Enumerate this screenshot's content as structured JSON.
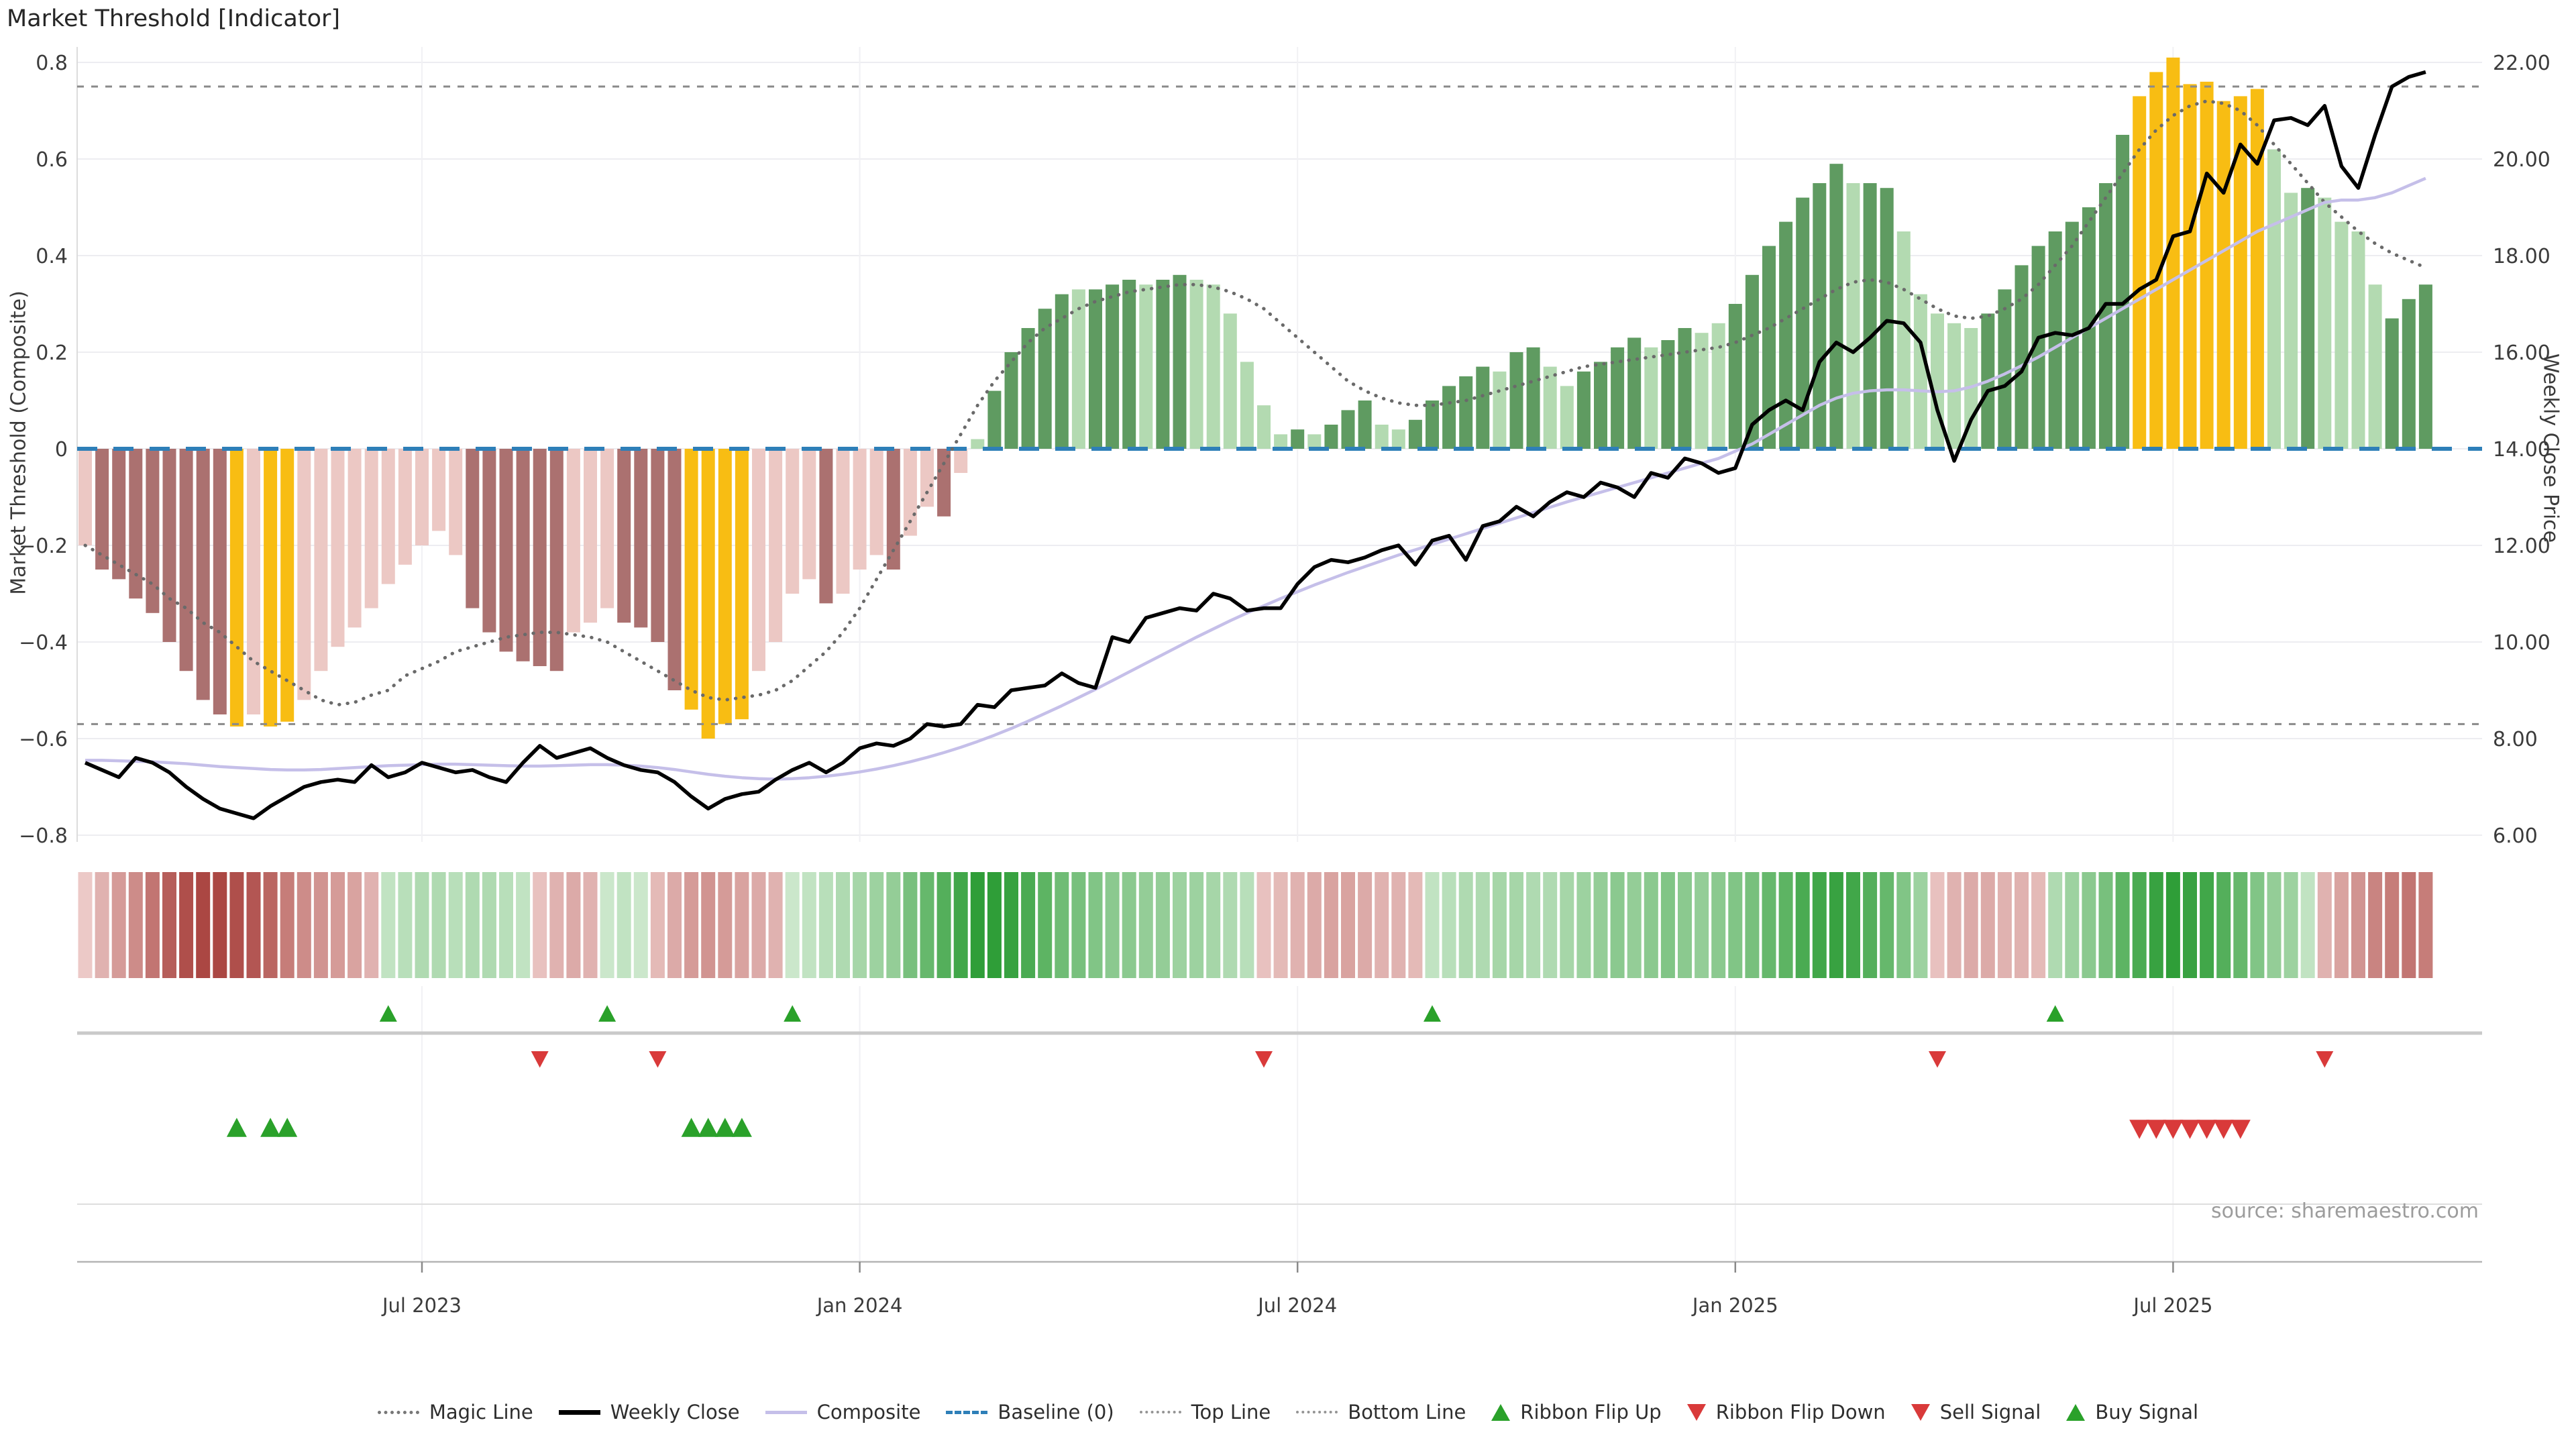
{
  "title": "Market Threshold [Indicator]",
  "source": "source: sharemaestro.com",
  "axes": {
    "left_title": "Market Threshold (Composite)",
    "right_title": "Weekly Close Price",
    "left_ticks": [
      "0.8",
      "0.6",
      "0.4",
      "0.2",
      "0",
      "−0.2",
      "−0.4",
      "−0.6",
      "−0.8"
    ],
    "left_tick_values": [
      0.8,
      0.6,
      0.4,
      0.2,
      0,
      -0.2,
      -0.4,
      -0.6,
      -0.8
    ],
    "right_ticks": [
      "22.00",
      "20.00",
      "18.00",
      "16.00",
      "14.00",
      "12.00",
      "10.00",
      "8.00",
      "6.00"
    ],
    "right_tick_values": [
      22,
      20,
      18,
      16,
      14,
      12,
      10,
      8,
      6
    ],
    "x_ticks": [
      {
        "label": "Jul 2023",
        "week": 20
      },
      {
        "label": "Jan 2024",
        "week": 46
      },
      {
        "label": "Jul 2024",
        "week": 72
      },
      {
        "label": "Jan 2025",
        "week": 98
      },
      {
        "label": "Jul 2025",
        "week": 124
      }
    ]
  },
  "legend": [
    {
      "label": "Magic Line",
      "type": "dotted-gray",
      "kind": "line"
    },
    {
      "label": "Weekly Close",
      "type": "solid-black",
      "kind": "line"
    },
    {
      "label": "Composite",
      "type": "solid-lavender",
      "kind": "line"
    },
    {
      "label": "Baseline (0)",
      "type": "dashed-blue",
      "kind": "line"
    },
    {
      "label": "Top Line",
      "type": "dotted-gray2",
      "kind": "line"
    },
    {
      "label": "Bottom Line",
      "type": "dotted-gray2",
      "kind": "line"
    },
    {
      "label": "Ribbon Flip Up",
      "type": "tri-up-green",
      "kind": "tri"
    },
    {
      "label": "Ribbon Flip Down",
      "type": "tri-down-red",
      "kind": "tri"
    },
    {
      "label": "Sell Signal",
      "type": "tri-down-red",
      "kind": "tri"
    },
    {
      "label": "Buy Signal",
      "type": "tri-up-green",
      "kind": "tri"
    }
  ],
  "colors": {
    "bar_pink": "#ecc8c4",
    "bar_red": "#ab7170",
    "bar_gold": "#f8bd13",
    "bar_lgreen": "#b3dab1",
    "bar_dgreen": "#5f9b61",
    "ribbon_red_light": "#f7e0de",
    "ribbon_red_dark": "#ab4743",
    "ribbon_green_light": "#e6f4e5",
    "ribbon_green_dark": "#2f9e38",
    "weekly_close": "#000000",
    "composite_line": "#c5bfe9",
    "magic_line": "#6a6a6a",
    "baseline": "#2e7fb8",
    "band_lines": "#8a8a8a",
    "signal_green": "#2aa12a",
    "signal_red": "#d93a3a",
    "grid": "#ededf1",
    "spine": "#b4b4b4"
  },
  "chart_data": {
    "type": "bar+line",
    "x_unit": "week",
    "n_weeks": 140,
    "ylim_left": [
      -0.9,
      0.9
    ],
    "ylim_right": [
      5,
      23
    ],
    "baseline": 0,
    "top_line": 0.75,
    "bottom_line": -0.57,
    "classes_key": {
      "p": "pink",
      "r": "red",
      "g": "gold",
      "l": "lgreen",
      "d": "dgreen"
    },
    "composite_bars": {
      "values": [
        -0.2,
        -0.25,
        -0.27,
        -0.31,
        -0.34,
        -0.4,
        -0.46,
        -0.52,
        -0.55,
        -0.575,
        -0.55,
        -0.575,
        -0.565,
        -0.52,
        -0.46,
        -0.41,
        -0.37,
        -0.33,
        -0.28,
        -0.24,
        -0.2,
        -0.17,
        -0.22,
        -0.33,
        -0.38,
        -0.42,
        -0.44,
        -0.45,
        -0.46,
        -0.38,
        -0.36,
        -0.33,
        -0.36,
        -0.37,
        -0.4,
        -0.5,
        -0.54,
        -0.6,
        -0.57,
        -0.56,
        -0.46,
        -0.4,
        -0.3,
        -0.27,
        -0.32,
        -0.3,
        -0.25,
        -0.22,
        -0.25,
        -0.18,
        -0.12,
        -0.14,
        -0.05,
        0.02,
        0.12,
        0.2,
        0.25,
        0.29,
        0.32,
        0.33,
        0.33,
        0.34,
        0.35,
        0.34,
        0.35,
        0.36,
        0.35,
        0.34,
        0.28,
        0.18,
        0.09,
        0.03,
        0.04,
        0.03,
        0.05,
        0.08,
        0.1,
        0.05,
        0.04,
        0.06,
        0.1,
        0.13,
        0.15,
        0.17,
        0.16,
        0.2,
        0.21,
        0.17,
        0.13,
        0.16,
        0.18,
        0.21,
        0.23,
        0.21,
        0.225,
        0.25,
        0.24,
        0.26,
        0.3,
        0.36,
        0.42,
        0.47,
        0.52,
        0.55,
        0.59,
        0.55,
        0.55,
        0.54,
        0.45,
        0.32,
        0.28,
        0.26,
        0.25,
        0.28,
        0.33,
        0.38,
        0.42,
        0.45,
        0.47,
        0.5,
        0.55,
        0.65,
        0.73,
        0.78,
        0.81,
        0.755,
        0.76,
        0.72,
        0.73,
        0.745,
        0.62,
        0.53,
        0.54,
        0.52,
        0.47,
        0.45,
        0.34,
        0.27,
        0.31,
        0.34
      ],
      "classes": [
        "p",
        "r",
        "r",
        "r",
        "r",
        "r",
        "r",
        "r",
        "r",
        "g",
        "p",
        "g",
        "g",
        "p",
        "p",
        "p",
        "p",
        "p",
        "p",
        "p",
        "p",
        "p",
        "p",
        "r",
        "r",
        "r",
        "r",
        "r",
        "r",
        "p",
        "p",
        "p",
        "r",
        "r",
        "r",
        "r",
        "g",
        "g",
        "g",
        "g",
        "p",
        "p",
        "p",
        "p",
        "r",
        "p",
        "p",
        "p",
        "r",
        "p",
        "p",
        "r",
        "p",
        "l",
        "d",
        "d",
        "d",
        "d",
        "d",
        "l",
        "d",
        "d",
        "d",
        "l",
        "d",
        "d",
        "l",
        "l",
        "l",
        "l",
        "l",
        "l",
        "d",
        "l",
        "d",
        "d",
        "d",
        "l",
        "l",
        "d",
        "d",
        "d",
        "d",
        "d",
        "l",
        "d",
        "d",
        "l",
        "l",
        "d",
        "d",
        "d",
        "d",
        "l",
        "d",
        "d",
        "l",
        "l",
        "d",
        "d",
        "d",
        "d",
        "d",
        "d",
        "d",
        "l",
        "d",
        "d",
        "l",
        "l",
        "l",
        "l",
        "l",
        "d",
        "d",
        "d",
        "d",
        "d",
        "d",
        "d",
        "d",
        "d",
        "g",
        "g",
        "g",
        "g",
        "g",
        "g",
        "g",
        "g",
        "l",
        "l",
        "d",
        "l",
        "l",
        "l",
        "l",
        "d",
        "d",
        "d"
      ]
    },
    "weekly_close": [
      7.5,
      7.35,
      7.2,
      7.6,
      7.5,
      7.3,
      7.0,
      6.75,
      6.55,
      6.45,
      6.35,
      6.6,
      6.8,
      7.0,
      7.1,
      7.15,
      7.1,
      7.45,
      7.2,
      7.3,
      7.5,
      7.4,
      7.3,
      7.35,
      7.2,
      7.1,
      7.5,
      7.85,
      7.6,
      7.7,
      7.8,
      7.6,
      7.45,
      7.35,
      7.3,
      7.1,
      6.8,
      6.55,
      6.75,
      6.85,
      6.9,
      7.15,
      7.35,
      7.5,
      7.3,
      7.5,
      7.8,
      7.9,
      7.85,
      8.0,
      8.3,
      8.25,
      8.3,
      8.7,
      8.65,
      9.0,
      9.05,
      9.1,
      9.35,
      9.15,
      9.05,
      10.1,
      10.0,
      10.5,
      10.6,
      10.7,
      10.65,
      11.0,
      10.9,
      10.65,
      10.7,
      10.7,
      11.2,
      11.55,
      11.7,
      11.65,
      11.75,
      11.9,
      12.0,
      11.6,
      12.1,
      12.2,
      11.7,
      12.4,
      12.5,
      12.8,
      12.6,
      12.9,
      13.1,
      13.0,
      13.3,
      13.2,
      13.0,
      13.5,
      13.4,
      13.8,
      13.7,
      13.5,
      13.6,
      14.5,
      14.8,
      15.0,
      14.8,
      15.8,
      16.2,
      16.0,
      16.3,
      16.65,
      16.6,
      16.2,
      14.8,
      13.75,
      14.6,
      15.2,
      15.3,
      15.6,
      16.3,
      16.4,
      16.35,
      16.5,
      17.0,
      17.0,
      17.3,
      17.5,
      18.4,
      18.5,
      19.7,
      19.3,
      20.3,
      19.9,
      20.8,
      20.85,
      20.7,
      21.1,
      19.85,
      19.4,
      20.5,
      21.5,
      21.7,
      21.8
    ],
    "composite_line": [
      7.55,
      7.55,
      7.54,
      7.53,
      7.52,
      7.5,
      7.48,
      7.45,
      7.42,
      7.4,
      7.38,
      7.36,
      7.35,
      7.35,
      7.36,
      7.38,
      7.4,
      7.42,
      7.44,
      7.45,
      7.46,
      7.47,
      7.47,
      7.46,
      7.45,
      7.44,
      7.43,
      7.43,
      7.44,
      7.45,
      7.46,
      7.46,
      7.45,
      7.43,
      7.4,
      7.36,
      7.31,
      7.26,
      7.22,
      7.19,
      7.17,
      7.16,
      7.17,
      7.19,
      7.22,
      7.26,
      7.31,
      7.37,
      7.44,
      7.52,
      7.61,
      7.71,
      7.82,
      7.94,
      8.07,
      8.21,
      8.36,
      8.52,
      8.68,
      8.85,
      9.02,
      9.2,
      9.38,
      9.56,
      9.74,
      9.92,
      10.1,
      10.27,
      10.44,
      10.6,
      10.75,
      10.9,
      11.04,
      11.18,
      11.31,
      11.44,
      11.56,
      11.68,
      11.8,
      11.91,
      12.02,
      12.13,
      12.24,
      12.35,
      12.46,
      12.57,
      12.68,
      12.79,
      12.9,
      13.0,
      13.1,
      13.2,
      13.3,
      13.4,
      13.5,
      13.6,
      13.7,
      13.8,
      13.95,
      14.1,
      14.3,
      14.5,
      14.7,
      14.9,
      15.05,
      15.15,
      15.2,
      15.22,
      15.22,
      15.2,
      15.18,
      15.2,
      15.28,
      15.4,
      15.55,
      15.72,
      15.9,
      16.1,
      16.3,
      16.5,
      16.7,
      16.9,
      17.1,
      17.3,
      17.5,
      17.7,
      17.9,
      18.1,
      18.3,
      18.5,
      18.65,
      18.8,
      18.95,
      19.1,
      19.15,
      19.15,
      19.2,
      19.3,
      19.45,
      19.6
    ],
    "magic_line": [
      -0.2,
      -0.22,
      -0.24,
      -0.26,
      -0.28,
      -0.31,
      -0.33,
      -0.36,
      -0.38,
      -0.41,
      -0.44,
      -0.46,
      -0.48,
      -0.5,
      -0.52,
      -0.53,
      -0.525,
      -0.51,
      -0.5,
      -0.47,
      -0.455,
      -0.44,
      -0.42,
      -0.41,
      -0.4,
      -0.39,
      -0.385,
      -0.38,
      -0.38,
      -0.385,
      -0.39,
      -0.4,
      -0.42,
      -0.44,
      -0.46,
      -0.48,
      -0.5,
      -0.515,
      -0.52,
      -0.515,
      -0.51,
      -0.5,
      -0.48,
      -0.45,
      -0.42,
      -0.38,
      -0.33,
      -0.27,
      -0.21,
      -0.15,
      -0.09,
      -0.03,
      0.03,
      0.09,
      0.14,
      0.18,
      0.22,
      0.25,
      0.27,
      0.29,
      0.305,
      0.315,
      0.325,
      0.33,
      0.335,
      0.34,
      0.34,
      0.335,
      0.325,
      0.31,
      0.29,
      0.26,
      0.23,
      0.2,
      0.17,
      0.14,
      0.12,
      0.105,
      0.095,
      0.09,
      0.09,
      0.095,
      0.1,
      0.11,
      0.12,
      0.13,
      0.14,
      0.15,
      0.16,
      0.17,
      0.175,
      0.18,
      0.185,
      0.19,
      0.195,
      0.2,
      0.205,
      0.21,
      0.22,
      0.235,
      0.25,
      0.27,
      0.29,
      0.31,
      0.33,
      0.345,
      0.35,
      0.345,
      0.33,
      0.31,
      0.29,
      0.275,
      0.27,
      0.275,
      0.29,
      0.31,
      0.34,
      0.38,
      0.42,
      0.47,
      0.52,
      0.57,
      0.62,
      0.66,
      0.69,
      0.71,
      0.72,
      0.715,
      0.7,
      0.67,
      0.63,
      0.59,
      0.55,
      0.51,
      0.48,
      0.45,
      0.425,
      0.405,
      0.39,
      0.375
    ],
    "ribbon": [
      -0.15,
      -0.3,
      -0.45,
      -0.55,
      -0.7,
      -0.85,
      -0.95,
      -1.0,
      -1.0,
      -0.95,
      -0.9,
      -0.8,
      -0.65,
      -0.55,
      -0.5,
      -0.45,
      -0.4,
      -0.3,
      0.2,
      0.25,
      0.3,
      0.3,
      0.25,
      0.3,
      0.3,
      0.25,
      0.2,
      -0.2,
      -0.3,
      -0.35,
      -0.3,
      0.15,
      0.2,
      0.15,
      -0.25,
      -0.35,
      -0.45,
      -0.5,
      -0.45,
      -0.4,
      -0.35,
      -0.3,
      0.15,
      0.2,
      0.25,
      0.3,
      0.35,
      0.4,
      0.45,
      0.6,
      0.7,
      0.8,
      0.9,
      1.0,
      1.0,
      0.95,
      0.85,
      0.75,
      0.65,
      0.6,
      0.55,
      0.5,
      0.5,
      0.45,
      0.45,
      0.4,
      0.4,
      0.35,
      0.3,
      0.25,
      -0.2,
      -0.25,
      -0.3,
      -0.35,
      -0.4,
      -0.4,
      -0.35,
      -0.3,
      -0.3,
      -0.25,
      0.2,
      0.25,
      0.3,
      0.3,
      0.35,
      0.35,
      0.3,
      0.3,
      0.35,
      0.4,
      0.45,
      0.5,
      0.45,
      0.5,
      0.55,
      0.5,
      0.45,
      0.5,
      0.55,
      0.6,
      0.7,
      0.75,
      0.85,
      0.9,
      0.95,
      0.9,
      0.8,
      0.7,
      0.55,
      0.4,
      -0.2,
      -0.3,
      -0.35,
      -0.35,
      -0.3,
      -0.3,
      -0.25,
      0.3,
      0.4,
      0.5,
      0.6,
      0.75,
      0.85,
      0.95,
      1.0,
      0.95,
      0.9,
      0.8,
      0.7,
      0.55,
      0.45,
      0.4,
      0.2,
      -0.3,
      -0.4,
      -0.5,
      -0.6,
      -0.65,
      -0.7,
      -0.65
    ],
    "signals": {
      "ribbon_flip_up_weeks": [
        18,
        31,
        42,
        80,
        117
      ],
      "ribbon_flip_down_weeks": [
        27,
        34,
        70,
        110,
        133
      ],
      "buy_weeks": [
        9,
        11,
        12,
        36,
        37,
        38,
        39
      ],
      "sell_weeks": [
        122,
        123,
        124,
        125,
        126,
        127,
        128
      ]
    }
  }
}
